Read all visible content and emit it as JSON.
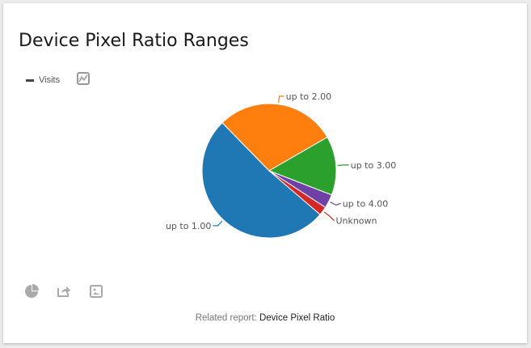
{
  "widget": {
    "title": "Device Pixel Ratio Ranges",
    "legend_label": "Visits",
    "evolution_icon": "line-chart-icon",
    "footer_icons": [
      "pie-chart-icon",
      "export-icon",
      "image-icon"
    ],
    "related_prefix": "Related report:",
    "related_link": "Device Pixel Ratio"
  },
  "chart_data": {
    "type": "pie",
    "title": "Device Pixel Ratio Ranges",
    "series_name": "Visits",
    "categories": [
      "up to 1.00",
      "up to 2.00",
      "up to 3.00",
      "up to 4.00",
      "Unknown"
    ],
    "values": [
      51.4,
      29.0,
      14.2,
      3.3,
      2.1
    ],
    "unit": "percent (estimated)",
    "colors": [
      "#1f77b4",
      "#ff7f0e",
      "#2ca02c",
      "#7041a4",
      "#d62728"
    ],
    "legend_position": "top-left"
  }
}
